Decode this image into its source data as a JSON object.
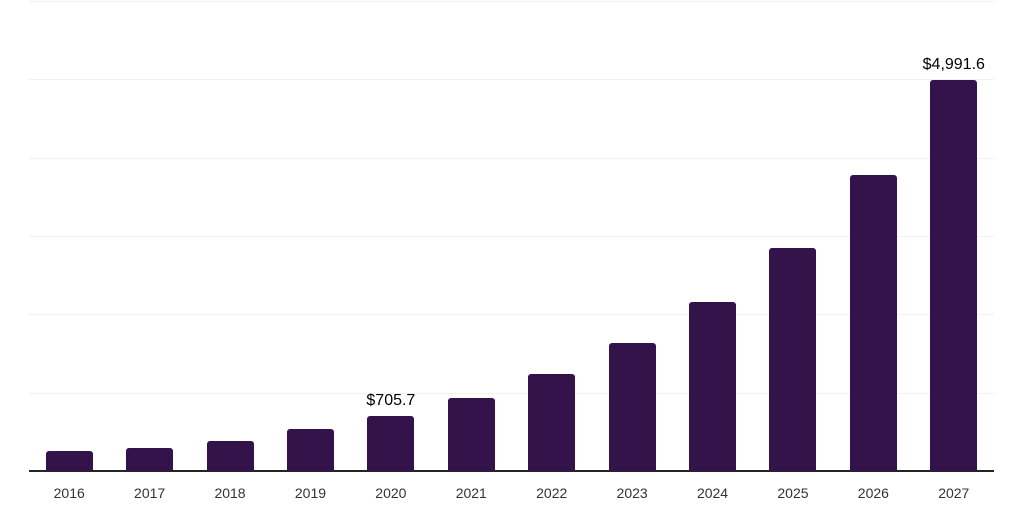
{
  "chart_data": {
    "type": "bar",
    "title": "",
    "xlabel": "",
    "ylabel": "",
    "categories": [
      "2016",
      "2017",
      "2018",
      "2019",
      "2020",
      "2021",
      "2022",
      "2023",
      "2024",
      "2025",
      "2026",
      "2027"
    ],
    "values": [
      250,
      300,
      385,
      535,
      705.7,
      933,
      1233,
      1630,
      2155,
      2850,
      3778,
      4991.6
    ],
    "data_labels": [
      "",
      "",
      "",
      "",
      "$705.7",
      "",
      "",
      "",
      "",
      "",
      "",
      "$4,991.6"
    ],
    "ylim": [
      0,
      6000
    ],
    "gridline_interval": 1000,
    "grid": true,
    "legend": false,
    "colors": {
      "bar": "#34134a",
      "gridline": "#f1f1f1",
      "axis_line": "#262626",
      "tick_label": "#333333",
      "data_label": "#000000",
      "background": "#ffffff"
    }
  }
}
